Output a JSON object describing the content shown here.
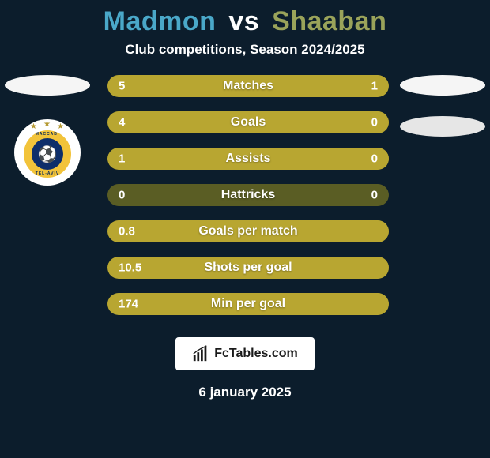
{
  "colors": {
    "pageBg": "#0c1d2c",
    "titleP1": "#4aa8c9",
    "titleVs": "#ffffff",
    "titleP2": "#9aa35a",
    "subtitle": "#ffffff",
    "barTrack": "#5a5d24",
    "barFill": "#b8a631",
    "barLabel": "#ffffff",
    "barValue": "#ffffff",
    "footerBg": "#ffffff",
    "footerText": "#1a1a1a",
    "date": "#ffffff",
    "crestOuter": "#f2c33a",
    "crestInner": "#0e2e6a"
  },
  "title": {
    "p1": "Madmon",
    "vs": "vs",
    "p2": "Shaaban"
  },
  "subtitle": "Club competitions, Season 2024/2025",
  "crest": {
    "textTop": "MACCABI",
    "textBottom": "TEL-AVIV"
  },
  "bars": [
    {
      "label": "Matches",
      "left": "5",
      "right": "1",
      "leftPct": 83,
      "rightPct": 17
    },
    {
      "label": "Goals",
      "left": "4",
      "right": "0",
      "leftPct": 100,
      "rightPct": 0
    },
    {
      "label": "Assists",
      "left": "1",
      "right": "0",
      "leftPct": 100,
      "rightPct": 0
    },
    {
      "label": "Hattricks",
      "left": "0",
      "right": "0",
      "leftPct": 0,
      "rightPct": 0
    },
    {
      "label": "Goals per match",
      "left": "0.8",
      "right": "",
      "leftPct": 100,
      "rightPct": 0
    },
    {
      "label": "Shots per goal",
      "left": "10.5",
      "right": "",
      "leftPct": 100,
      "rightPct": 0
    },
    {
      "label": "Min per goal",
      "left": "174",
      "right": "",
      "leftPct": 100,
      "rightPct": 0
    }
  ],
  "footer": {
    "brand": "FcTables.com"
  },
  "date": "6 january 2025"
}
